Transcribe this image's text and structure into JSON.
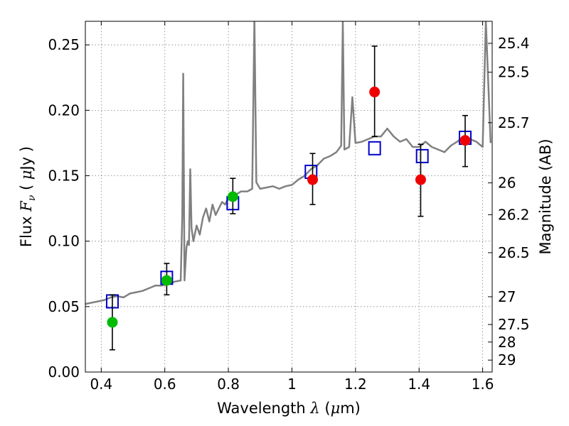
{
  "chart_data": {
    "type": "scatter",
    "title": "",
    "xlabel": {
      "prefix": "Wavelength ",
      "symbol": "λ",
      "open": " (",
      "unit_sym": "μ",
      "unit": "m)"
    },
    "ylabel": {
      "prefix": "Flux ",
      "symbol": "F",
      "sub": "ν",
      "open": " ( ",
      "unit_sym": "μ",
      "unit": "Jy )"
    },
    "y2label": "Magnitude (AB)",
    "xlim": [
      0.35,
      1.63
    ],
    "ylim": [
      0.0,
      0.268
    ],
    "grid": true,
    "x_ticks": [
      0.4,
      0.6,
      0.8,
      1.0,
      1.2,
      1.4,
      1.6
    ],
    "x_tick_labels": [
      "0.4",
      "0.6",
      "0.8",
      "1",
      "1.2",
      "1.4",
      "1.6"
    ],
    "y_ticks": [
      0.0,
      0.05,
      0.1,
      0.15,
      0.2,
      0.25
    ],
    "y_tick_labels": [
      "0.00",
      "0.05",
      "0.10",
      "0.15",
      "0.20",
      "0.25"
    ],
    "magnitude_ticks": [
      {
        "label": "25.4",
        "mag": 25.4
      },
      {
        "label": "25.5",
        "mag": 25.5
      },
      {
        "label": "25.7",
        "mag": 25.7
      },
      {
        "label": "26",
        "mag": 26.0
      },
      {
        "label": "26.2",
        "mag": 26.2
      },
      {
        "label": "26.5",
        "mag": 26.5
      },
      {
        "label": "27",
        "mag": 27.0
      },
      {
        "label": "27.5",
        "mag": 27.5
      },
      {
        "label": "28",
        "mag": 28.0
      },
      {
        "label": "29",
        "mag": 29.0
      }
    ],
    "colors": {
      "model": "#808080",
      "model_photometry": "#0000cc",
      "optical": "#00bb00",
      "infrared": "#ee0000",
      "errorbar": "#000000",
      "grid": "#808080"
    },
    "series": [
      {
        "kind": "line",
        "color_key": "model",
        "points": [
          [
            0.35,
            0.052
          ],
          [
            0.37,
            0.053
          ],
          [
            0.39,
            0.054
          ],
          [
            0.41,
            0.055
          ],
          [
            0.43,
            0.057
          ],
          [
            0.45,
            0.058
          ],
          [
            0.47,
            0.057
          ],
          [
            0.49,
            0.06
          ],
          [
            0.51,
            0.061
          ],
          [
            0.53,
            0.062
          ],
          [
            0.55,
            0.064
          ],
          [
            0.57,
            0.066
          ],
          [
            0.59,
            0.066
          ],
          [
            0.61,
            0.067
          ],
          [
            0.63,
            0.069
          ],
          [
            0.65,
            0.07
          ],
          [
            0.655,
            0.12
          ],
          [
            0.658,
            0.228
          ],
          [
            0.662,
            0.07
          ],
          [
            0.665,
            0.083
          ],
          [
            0.668,
            0.095
          ],
          [
            0.672,
            0.1
          ],
          [
            0.676,
            0.097
          ],
          [
            0.68,
            0.155
          ],
          [
            0.684,
            0.11
          ],
          [
            0.69,
            0.1
          ],
          [
            0.7,
            0.112
          ],
          [
            0.71,
            0.105
          ],
          [
            0.72,
            0.118
          ],
          [
            0.73,
            0.125
          ],
          [
            0.74,
            0.115
          ],
          [
            0.75,
            0.128
          ],
          [
            0.76,
            0.12
          ],
          [
            0.77,
            0.125
          ],
          [
            0.78,
            0.13
          ],
          [
            0.79,
            0.128
          ],
          [
            0.8,
            0.133
          ],
          [
            0.82,
            0.135
          ],
          [
            0.84,
            0.138
          ],
          [
            0.86,
            0.138
          ],
          [
            0.875,
            0.14
          ],
          [
            0.882,
            0.27
          ],
          [
            0.888,
            0.145
          ],
          [
            0.9,
            0.14
          ],
          [
            0.92,
            0.141
          ],
          [
            0.94,
            0.142
          ],
          [
            0.96,
            0.14
          ],
          [
            0.98,
            0.142
          ],
          [
            1.0,
            0.143
          ],
          [
            1.02,
            0.147
          ],
          [
            1.04,
            0.15
          ],
          [
            1.06,
            0.155
          ],
          [
            1.08,
            0.158
          ],
          [
            1.1,
            0.163
          ],
          [
            1.12,
            0.165
          ],
          [
            1.14,
            0.168
          ],
          [
            1.155,
            0.173
          ],
          [
            1.16,
            0.268
          ],
          [
            1.165,
            0.17
          ],
          [
            1.18,
            0.172
          ],
          [
            1.19,
            0.21
          ],
          [
            1.2,
            0.175
          ],
          [
            1.22,
            0.176
          ],
          [
            1.24,
            0.178
          ],
          [
            1.26,
            0.18
          ],
          [
            1.28,
            0.18
          ],
          [
            1.3,
            0.186
          ],
          [
            1.32,
            0.18
          ],
          [
            1.34,
            0.176
          ],
          [
            1.36,
            0.178
          ],
          [
            1.38,
            0.172
          ],
          [
            1.4,
            0.172
          ],
          [
            1.42,
            0.176
          ],
          [
            1.44,
            0.172
          ],
          [
            1.46,
            0.17
          ],
          [
            1.48,
            0.168
          ],
          [
            1.5,
            0.173
          ],
          [
            1.52,
            0.176
          ],
          [
            1.54,
            0.18
          ],
          [
            1.56,
            0.178
          ],
          [
            1.58,
            0.176
          ],
          [
            1.6,
            0.172
          ],
          [
            1.61,
            0.268
          ],
          [
            1.625,
            0.175
          ]
        ]
      },
      {
        "kind": "model-photometry",
        "color_key": "model_photometry",
        "marker": "open-square",
        "points": [
          {
            "x": 0.435,
            "y": 0.054
          },
          {
            "x": 0.606,
            "y": 0.072
          },
          {
            "x": 0.814,
            "y": 0.129
          },
          {
            "x": 1.06,
            "y": 0.153
          },
          {
            "x": 1.26,
            "y": 0.171
          },
          {
            "x": 1.41,
            "y": 0.165
          },
          {
            "x": 1.545,
            "y": 0.179
          }
        ]
      },
      {
        "kind": "observed-optical",
        "color_key": "optical",
        "marker": "filled-circle",
        "points": [
          {
            "x": 0.435,
            "y": 0.038,
            "ylo": 0.017,
            "yhi": 0.059
          },
          {
            "x": 0.606,
            "y": 0.07,
            "ylo": 0.059,
            "yhi": 0.083
          },
          {
            "x": 0.814,
            "y": 0.134,
            "ylo": 0.121,
            "yhi": 0.148
          }
        ]
      },
      {
        "kind": "observed-infrared",
        "color_key": "infrared",
        "marker": "filled-circle",
        "points": [
          {
            "x": 1.065,
            "y": 0.147,
            "ylo": 0.128,
            "yhi": 0.167
          },
          {
            "x": 1.26,
            "y": 0.214,
            "ylo": 0.18,
            "yhi": 0.249
          },
          {
            "x": 1.405,
            "y": 0.147,
            "ylo": 0.119,
            "yhi": 0.174
          },
          {
            "x": 1.545,
            "y": 0.177,
            "ylo": 0.157,
            "yhi": 0.196
          }
        ]
      }
    ]
  }
}
